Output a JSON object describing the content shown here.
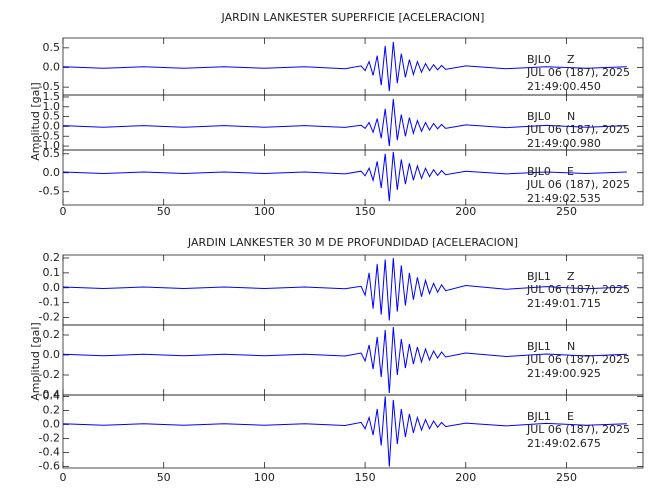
{
  "chart_data": [
    {
      "type": "line",
      "title": "JARDIN LANKESTER SUPERFICIE [ACELERACION]",
      "ylabel": "Amplitud [gal]",
      "color": "#0000ff",
      "xlim": [
        0,
        288
      ],
      "xticks": [
        0,
        50,
        100,
        150,
        200,
        250
      ],
      "x": [
        0,
        20,
        40,
        60,
        80,
        100,
        120,
        140,
        148,
        150,
        152,
        154,
        156,
        158,
        160,
        162,
        164,
        166,
        168,
        170,
        172,
        174,
        176,
        178,
        180,
        182,
        184,
        186,
        188,
        190,
        200,
        220,
        240,
        260,
        280
      ],
      "panels": [
        {
          "station": "BJL0",
          "component": "Z",
          "date": "JUL 06 (187), 2025",
          "time": "21:49:00.450",
          "ylim": [
            -0.7,
            0.75
          ],
          "yticks": [
            {
              "value": 0.5,
              "label": "0.5"
            },
            {
              "value": 0,
              "label": "0.0"
            },
            {
              "value": -0.5,
              "label": "-0.5"
            }
          ],
          "values": [
            0.02,
            -0.02,
            0.02,
            -0.02,
            0.02,
            -0.02,
            0.02,
            -0.03,
            0.04,
            -0.08,
            0.15,
            -0.2,
            0.3,
            -0.45,
            0.55,
            -0.6,
            0.65,
            -0.4,
            0.35,
            -0.25,
            0.2,
            -0.18,
            0.15,
            -0.12,
            0.1,
            -0.08,
            0.07,
            -0.06,
            0.05,
            -0.05,
            0.04,
            -0.03,
            0.02,
            -0.02,
            0.02
          ]
        },
        {
          "station": "BJL0",
          "component": "N",
          "date": "JUL 06 (187), 2025",
          "time": "21:49:00.980",
          "ylim": [
            -1.2,
            1.6
          ],
          "yticks": [
            {
              "value": 1.5,
              "label": "1.5"
            },
            {
              "value": 1,
              "label": "1.0"
            },
            {
              "value": 0.5,
              "label": "0.5"
            },
            {
              "value": 0,
              "label": "0.0"
            },
            {
              "value": -0.5,
              "label": "-0.5"
            },
            {
              "value": -1,
              "label": "-1.0"
            }
          ],
          "values": [
            0.04,
            -0.04,
            0.04,
            -0.04,
            0.04,
            -0.04,
            0.04,
            -0.05,
            0.06,
            -0.1,
            0.2,
            -0.3,
            0.4,
            -0.6,
            0.9,
            -1.0,
            1.4,
            -0.7,
            0.6,
            -0.5,
            0.45,
            -0.35,
            0.3,
            -0.25,
            0.2,
            -0.18,
            0.15,
            -0.12,
            0.1,
            -0.1,
            0.08,
            -0.06,
            0.05,
            -0.04,
            0.04
          ]
        },
        {
          "station": "BJL0",
          "component": "E",
          "date": "JUL 06 (187), 2025",
          "time": "21:49:02.535",
          "ylim": [
            -0.85,
            0.6
          ],
          "yticks": [
            {
              "value": 0.5,
              "label": "0.5"
            },
            {
              "value": 0,
              "label": "0.0"
            },
            {
              "value": -0.5,
              "label": "-0.5"
            }
          ],
          "values": [
            0.02,
            -0.02,
            0.02,
            -0.02,
            0.02,
            -0.02,
            0.02,
            -0.03,
            0.04,
            -0.08,
            0.12,
            -0.2,
            0.3,
            -0.4,
            0.5,
            -0.75,
            0.55,
            -0.45,
            0.35,
            -0.3,
            0.25,
            -0.2,
            0.18,
            -0.15,
            0.12,
            -0.1,
            0.08,
            -0.07,
            0.06,
            -0.05,
            0.04,
            -0.03,
            0.02,
            -0.02,
            0.02
          ]
        }
      ]
    },
    {
      "type": "line",
      "title": "JARDIN LANKESTER 30 M DE PROFUNDIDAD [ACELERACION]",
      "ylabel": "Amplitud [gal]",
      "color": "#0000ff",
      "xlim": [
        0,
        288
      ],
      "xticks": [
        0,
        50,
        100,
        150,
        200,
        250
      ],
      "x": [
        0,
        20,
        40,
        60,
        80,
        100,
        120,
        140,
        148,
        150,
        152,
        154,
        156,
        158,
        160,
        162,
        164,
        166,
        168,
        170,
        172,
        174,
        176,
        178,
        180,
        182,
        184,
        186,
        188,
        190,
        200,
        220,
        240,
        260,
        280
      ],
      "panels": [
        {
          "station": "BJL1",
          "component": "Z",
          "date": "JUL 06 (187), 2025",
          "time": "21:49:01.715",
          "ylim": [
            -0.25,
            0.22
          ],
          "yticks": [
            0.2,
            0.1,
            {
              "value": 0,
              "label": "0.0"
            },
            -0.1,
            -0.2
          ],
          "values": [
            0.005,
            -0.005,
            0.005,
            -0.005,
            0.005,
            -0.005,
            0.005,
            -0.006,
            0.01,
            -0.05,
            0.1,
            -0.14,
            0.16,
            -0.18,
            0.19,
            -0.22,
            0.2,
            -0.16,
            0.15,
            -0.12,
            0.1,
            -0.08,
            0.07,
            -0.06,
            0.05,
            -0.04,
            0.03,
            -0.03,
            0.02,
            -0.02,
            0.015,
            -0.01,
            0.008,
            -0.006,
            0.005
          ]
        },
        {
          "station": "BJL1",
          "component": "N",
          "date": "JUL 06 (187), 2025",
          "time": "21:49:00.925",
          "ylim": [
            -0.4,
            0.3
          ],
          "yticks": [
            0.2,
            {
              "value": 0,
              "label": "0.0"
            },
            -0.2,
            -0.4
          ],
          "values": [
            0.008,
            -0.008,
            0.008,
            -0.008,
            0.008,
            -0.008,
            0.008,
            -0.01,
            0.02,
            -0.06,
            0.1,
            -0.14,
            0.18,
            -0.22,
            0.25,
            -0.38,
            0.28,
            -0.2,
            0.16,
            -0.13,
            0.11,
            -0.09,
            0.08,
            -0.07,
            0.06,
            -0.05,
            0.04,
            -0.03,
            0.03,
            -0.02,
            0.02,
            -0.015,
            0.01,
            -0.01,
            0.008
          ]
        },
        {
          "station": "BJL1",
          "component": "E",
          "date": "JUL 06 (187), 2025",
          "time": "21:49:02.675",
          "ylim": [
            -0.62,
            0.42
          ],
          "yticks": [
            0.4,
            0.2,
            {
              "value": 0,
              "label": "0.0"
            },
            -0.2,
            -0.4,
            -0.6
          ],
          "values": [
            0.01,
            -0.01,
            0.01,
            -0.01,
            0.01,
            -0.01,
            0.01,
            -0.015,
            0.03,
            -0.06,
            0.1,
            -0.15,
            0.22,
            -0.3,
            0.4,
            -0.6,
            0.35,
            -0.28,
            0.22,
            -0.18,
            0.15,
            -0.12,
            0.1,
            -0.08,
            0.07,
            -0.06,
            0.05,
            -0.04,
            0.03,
            -0.03,
            0.02,
            -0.02,
            0.015,
            -0.01,
            0.01
          ]
        }
      ]
    }
  ]
}
